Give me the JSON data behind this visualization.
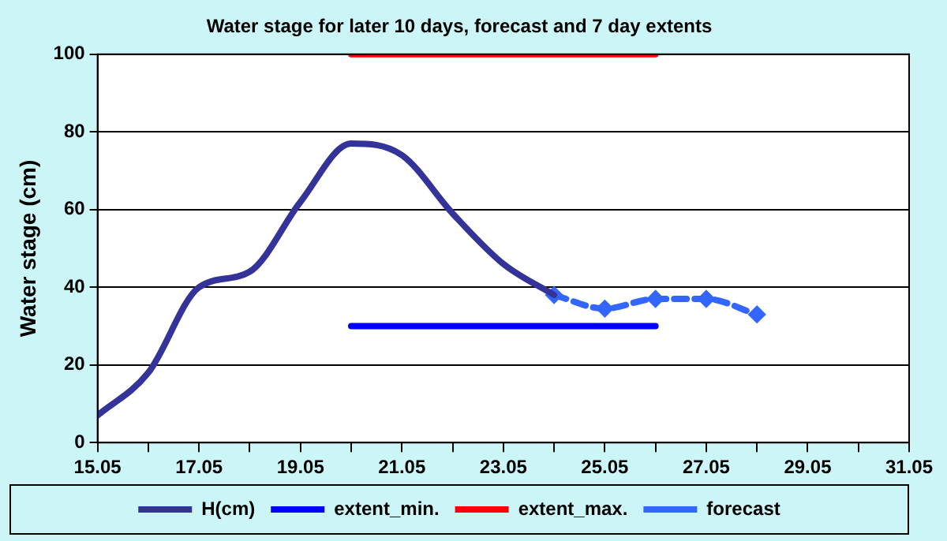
{
  "chart_data": {
    "type": "line",
    "title": "Water stage for later 10 days, forecast and 7 day extents",
    "ylabel": "Water stage (cm)",
    "series": [
      {
        "name": "H(cm)",
        "color": "#333399",
        "x": [
          "--05-15",
          "--05-16",
          "--05-17",
          "--05-18",
          "--05-19",
          "--05-20",
          "--05-21",
          "--05-22",
          "--05-23",
          "--05-24"
        ],
        "values": [
          7,
          18,
          40,
          44,
          62,
          77,
          74,
          59,
          46,
          38
        ],
        "marker": "none",
        "line_style": "solid"
      },
      {
        "name": "extent_min.",
        "color": "#0000ff",
        "x": [
          "--05-20",
          "--05-26"
        ],
        "values": [
          30,
          30
        ],
        "marker": "none",
        "line_style": "solid"
      },
      {
        "name": "extent_max.",
        "color": "#ff0000",
        "x": [
          "--05-20",
          "--05-26"
        ],
        "values": [
          100,
          100
        ],
        "marker": "none",
        "line_style": "solid"
      },
      {
        "name": "forecast",
        "color": "#3366ff",
        "x": [
          "--05-24",
          "--05-25",
          "--05-26",
          "--05-27",
          "--05-28"
        ],
        "values": [
          38,
          34.5,
          37,
          37,
          33
        ],
        "marker": "diamond",
        "line_style": "dashed"
      }
    ],
    "xlim": [
      "--05-15",
      "--05-31"
    ],
    "xticks": [
      {
        "value": "--05-15",
        "label": "15.05"
      },
      {
        "value": "--05-16",
        "label": null
      },
      {
        "value": "--05-17",
        "label": "17.05"
      },
      {
        "value": "--05-18",
        "label": null
      },
      {
        "value": "--05-19",
        "label": "19.05"
      },
      {
        "value": "--05-20",
        "label": null
      },
      {
        "value": "--05-21",
        "label": "21.05"
      },
      {
        "value": "--05-22",
        "label": null
      },
      {
        "value": "--05-23",
        "label": "23.05"
      },
      {
        "value": "--05-24",
        "label": null
      },
      {
        "value": "--05-25",
        "label": "25.05"
      },
      {
        "value": "--05-26",
        "label": null
      },
      {
        "value": "--05-27",
        "label": "27.05"
      },
      {
        "value": "--05-28",
        "label": null
      },
      {
        "value": "--05-29",
        "label": "29.05"
      },
      {
        "value": "--05-30",
        "label": null
      },
      {
        "value": "--05-31",
        "label": "31.05"
      }
    ],
    "ylim": [
      0,
      100
    ],
    "yticks": [
      0,
      20,
      40,
      60,
      80,
      100
    ],
    "grid": "y",
    "legend": "bottom"
  }
}
